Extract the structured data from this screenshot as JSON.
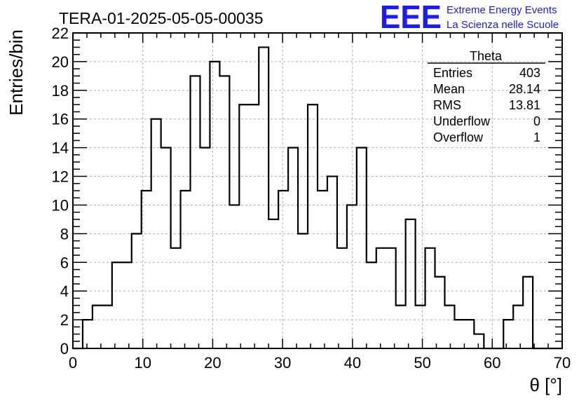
{
  "chart_data": {
    "type": "bar",
    "title": "TERA-01-2025-05-05-00035",
    "xlabel": "θ [°]",
    "ylabel": "Entries/bin",
    "xlim": [
      0,
      70
    ],
    "ylim": [
      0,
      22
    ],
    "x_ticks": [
      "0",
      "10",
      "20",
      "30",
      "40",
      "50",
      "60",
      "70"
    ],
    "y_ticks": [
      "0",
      "2",
      "4",
      "6",
      "8",
      "10",
      "12",
      "14",
      "16",
      "18",
      "20",
      "22"
    ],
    "grid": true,
    "bin_edges_start": 0,
    "bin_width": 1.4,
    "values": [
      0,
      2,
      3,
      3,
      6,
      6,
      8,
      11,
      16,
      14,
      7,
      11,
      19,
      14,
      20,
      19,
      10,
      17,
      17,
      21,
      9,
      11,
      14,
      8,
      17,
      11,
      12,
      7,
      10,
      14,
      6,
      7,
      7,
      3,
      9,
      3,
      7,
      5,
      3,
      2,
      2,
      1,
      0,
      0,
      2,
      3,
      5,
      0,
      0,
      0
    ],
    "stats": {
      "title": "Theta",
      "rows": [
        {
          "label": "Entries",
          "value": "403"
        },
        {
          "label": "Mean",
          "value": "28.14"
        },
        {
          "label": "RMS",
          "value": "13.81"
        },
        {
          "label": "Underflow",
          "value": "0"
        },
        {
          "label": "Overflow",
          "value": "1"
        }
      ]
    }
  },
  "logo": {
    "mark": "EEE",
    "line1": "Extreme Energy Events",
    "line2": "La Scienza nelle Scuole",
    "color": "#1a1aff"
  }
}
